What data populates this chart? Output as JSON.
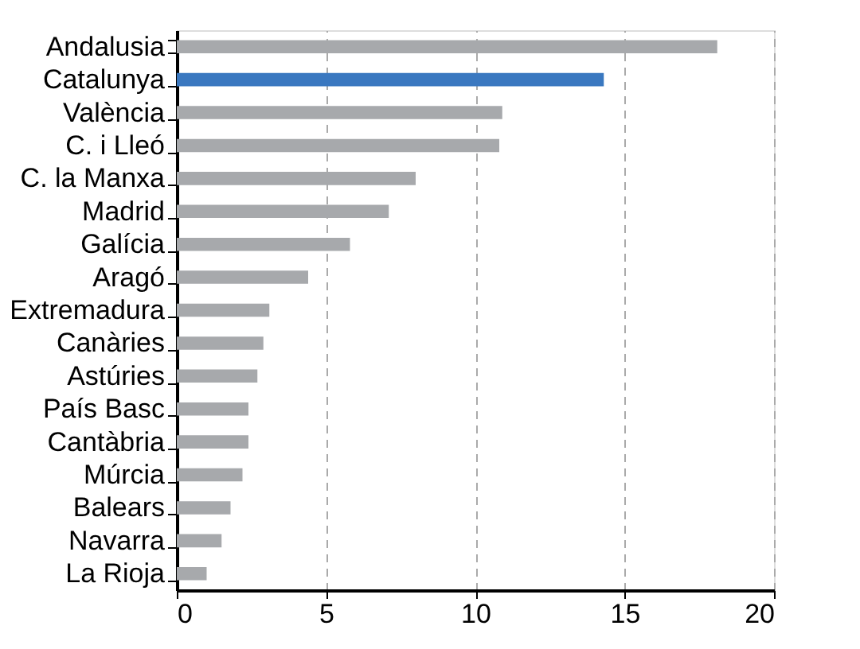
{
  "chart_data": {
    "type": "bar",
    "orientation": "horizontal",
    "categories": [
      "Andalusia",
      "Catalunya",
      "València",
      "C. i Lleó",
      "C. la Manxa",
      "Madrid",
      "Galícia",
      "Aragó",
      "Extremadura",
      "Canàries",
      "Astúries",
      "País Basc",
      "Cantàbria",
      "Múrcia",
      "Balears",
      "Navarra",
      "La Rioja"
    ],
    "values": [
      18.1,
      14.3,
      10.9,
      10.8,
      8.0,
      7.1,
      5.8,
      4.4,
      3.1,
      2.9,
      2.7,
      2.4,
      2.4,
      2.2,
      1.8,
      1.5,
      1.0
    ],
    "colors": [
      "#a7a9ac",
      "#3a78c0",
      "#a7a9ac",
      "#a7a9ac",
      "#a7a9ac",
      "#a7a9ac",
      "#a7a9ac",
      "#a7a9ac",
      "#a7a9ac",
      "#a7a9ac",
      "#a7a9ac",
      "#a7a9ac",
      "#a7a9ac",
      "#a7a9ac",
      "#a7a9ac",
      "#a7a9ac",
      "#a7a9ac"
    ],
    "xlim": [
      0,
      20
    ],
    "xticks": [
      0,
      5,
      10,
      15,
      20
    ],
    "grid": "x"
  }
}
